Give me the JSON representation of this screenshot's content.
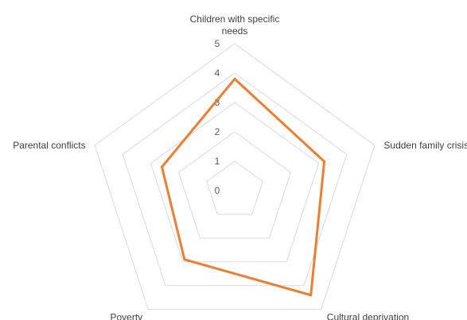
{
  "chart_data": {
    "type": "radar",
    "title": "",
    "categories": [
      "Children with specific needs",
      "Sudden family crisis",
      "Cultural deprivation",
      "Poverty",
      "Parental conflicts"
    ],
    "category_label_lines": [
      [
        "Children with specific",
        "needs"
      ],
      [
        "Sudden family crisis"
      ],
      [
        "Cultural deprivation"
      ],
      [
        "Poverty"
      ],
      [
        "Parental conflicts"
      ]
    ],
    "series": [
      {
        "values": [
          3.8,
          3.2,
          4.4,
          2.9,
          2.6
        ],
        "color": "#ed7d31"
      }
    ],
    "r_range": [
      0,
      5
    ],
    "ticks": [
      "0",
      "1",
      "2",
      "3",
      "4",
      "5"
    ],
    "grid": true,
    "legend": "none",
    "grid_color": "#d9d9d9"
  }
}
